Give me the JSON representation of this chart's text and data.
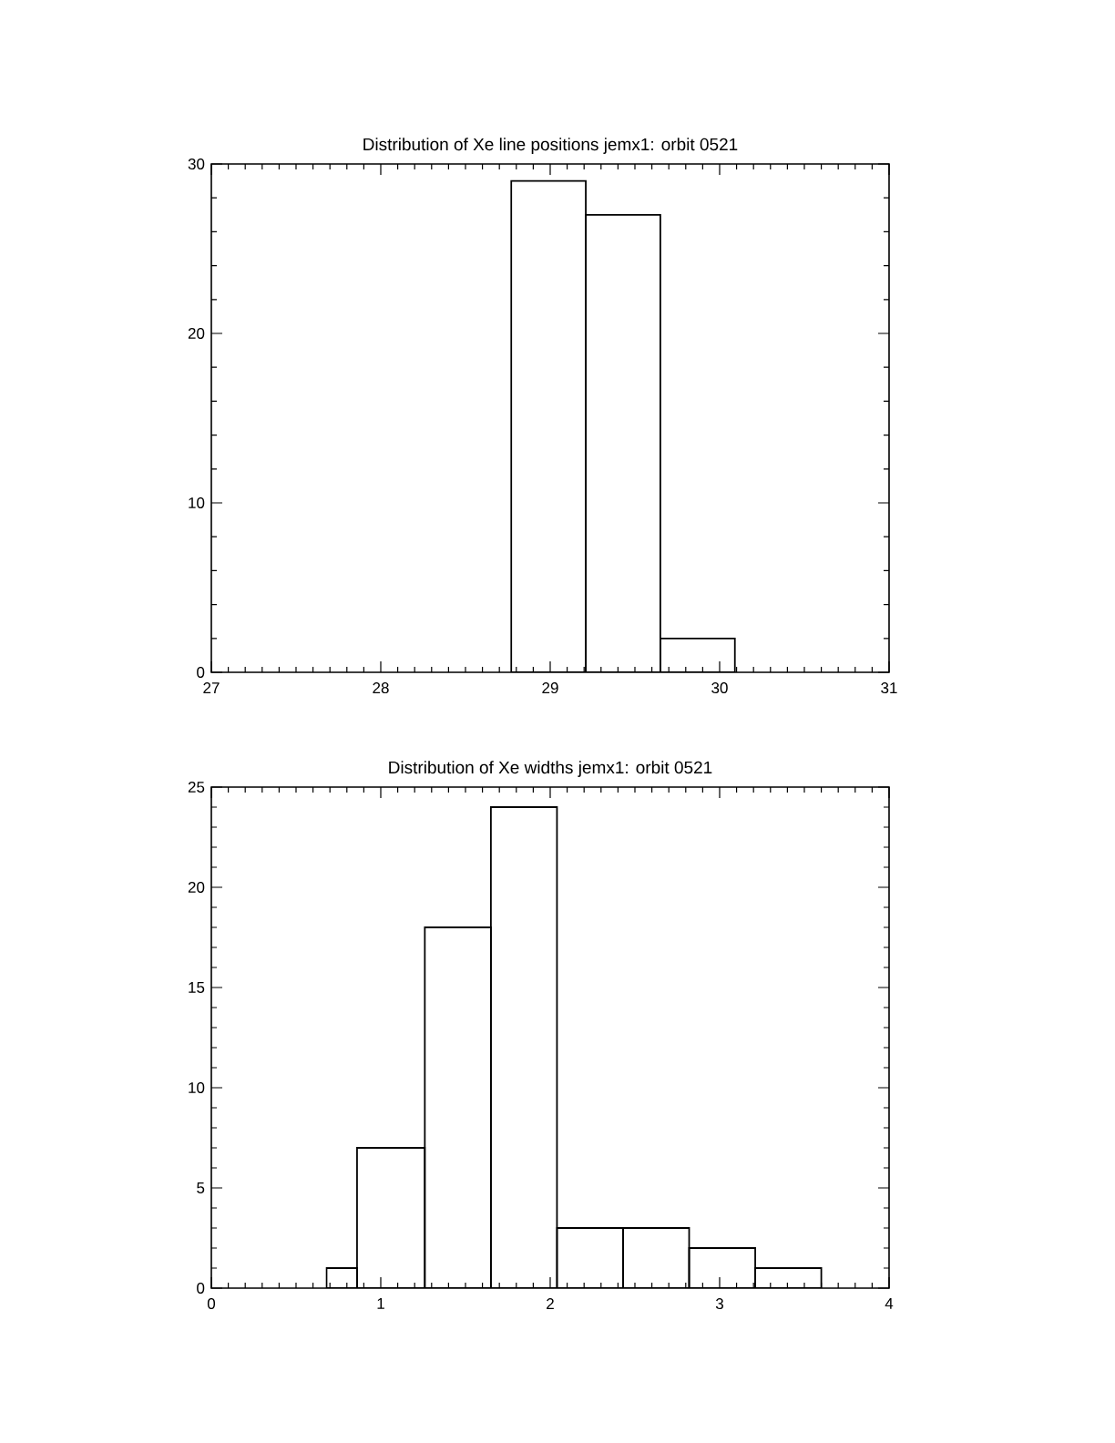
{
  "chart_data": [
    {
      "type": "histogram",
      "title": "Distribution of Xe line positions jemx1: orbit 0521",
      "bins": [
        28.77,
        29.21,
        29.65,
        30.09
      ],
      "values": [
        29,
        27,
        2
      ],
      "color": "#000000",
      "xlim": [
        27,
        31
      ],
      "ylim": [
        0,
        30
      ],
      "xticks": [
        27,
        28,
        29,
        30,
        31
      ],
      "yticks": [
        0,
        10,
        20,
        30
      ]
    },
    {
      "type": "histogram",
      "title": "Distribution of Xe widths jemx1: orbit 0521",
      "bins": [
        0.68,
        0.86,
        1.26,
        1.65,
        2.04,
        2.43,
        2.82,
        3.21,
        3.6
      ],
      "values": [
        1,
        7,
        18,
        24,
        3,
        3,
        2,
        1
      ],
      "color": "#000000",
      "xlim": [
        0,
        4
      ],
      "ylim": [
        0,
        25
      ],
      "xticks": [
        0,
        1,
        2,
        3,
        4
      ],
      "yticks": [
        0,
        5,
        10,
        15,
        20,
        25
      ]
    }
  ]
}
